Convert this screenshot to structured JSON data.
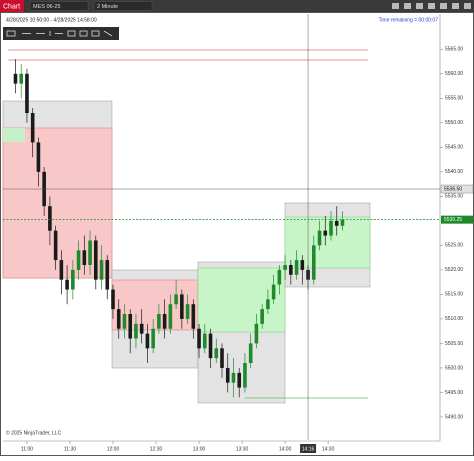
{
  "chart_data": {
    "type": "candlestick",
    "tab": "Chart",
    "instrument": "MES 06-25",
    "interval": "2 Minute",
    "date_range": "4/28/2025 10:50:00 - 4/28/2025 14:58:00",
    "time_remaining": "Time remaining = 00:00:07",
    "copyright": "© 2025 NinjaTrader, LLC",
    "x": [
      "10:52",
      "10:56",
      "11:00",
      "11:04",
      "11:08",
      "11:12",
      "11:16",
      "11:20",
      "11:24",
      "11:28",
      "11:32",
      "11:36",
      "11:40",
      "11:44",
      "11:48",
      "11:52",
      "11:56",
      "12:00",
      "12:04",
      "12:08",
      "12:12",
      "12:16",
      "12:20",
      "12:24",
      "12:28",
      "12:32",
      "12:36",
      "12:40",
      "12:44",
      "12:48",
      "12:52",
      "12:56",
      "13:00",
      "13:04",
      "13:08",
      "13:12",
      "13:16",
      "13:20",
      "13:24",
      "13:28",
      "13:32",
      "13:36",
      "13:40",
      "13:44",
      "13:48",
      "13:52",
      "13:56",
      "14:00",
      "14:04",
      "14:08",
      "14:12",
      "14:16",
      "14:20",
      "14:24",
      "14:28",
      "14:32",
      "14:36",
      "14:40"
    ],
    "open": [
      5560,
      5558,
      5560,
      5552,
      5546,
      5540,
      5533,
      5528,
      5522,
      5518,
      5516,
      5520,
      5524,
      5521,
      5526,
      5518,
      5522,
      5516,
      5512,
      5508,
      5511,
      5506,
      5509,
      5507,
      5504,
      5508,
      5511,
      5508,
      5513,
      5515,
      5510,
      5513,
      5508,
      5504,
      5507,
      5502,
      5504,
      5500,
      5497,
      5499,
      5496,
      5501,
      5505,
      5509,
      5512,
      5514,
      5517,
      5520,
      5521,
      5519,
      5522,
      5520,
      5518,
      5525,
      5528,
      5527,
      5530,
      5529
    ],
    "high": [
      5563,
      5562,
      5561,
      5553,
      5547,
      5541,
      5535,
      5529,
      5524,
      5521,
      5522,
      5526,
      5527,
      5528,
      5527,
      5525,
      5523,
      5517,
      5514,
      5513,
      5512,
      5511,
      5512,
      5509,
      5510,
      5513,
      5514,
      5515,
      5518,
      5516,
      5515,
      5514,
      5509,
      5509,
      5508,
      5506,
      5505,
      5503,
      5502,
      5500,
      5503,
      5507,
      5511,
      5513,
      5516,
      5519,
      5521,
      5523,
      5522,
      5524,
      5523,
      5521,
      5527,
      5530,
      5531,
      5532,
      5533,
      5532
    ],
    "low": [
      5556,
      5555,
      5550,
      5543,
      5537,
      5531,
      5525,
      5520,
      5515,
      5513,
      5514,
      5518,
      5519,
      5519,
      5516,
      5516,
      5514,
      5510,
      5506,
      5506,
      5503,
      5504,
      5505,
      5501,
      5503,
      5507,
      5506,
      5507,
      5512,
      5508,
      5509,
      5506,
      5502,
      5503,
      5500,
      5501,
      5498,
      5495,
      5494,
      5494,
      5495,
      5500,
      5504,
      5508,
      5511,
      5513,
      5515,
      5518,
      5517,
      5518,
      5517,
      5516,
      5517,
      5524,
      5525,
      5526,
      5527,
      5528
    ],
    "close": [
      5558,
      5560,
      5552,
      5546,
      5540,
      5533,
      5528,
      5522,
      5518,
      5516,
      5520,
      5524,
      5521,
      5526,
      5518,
      5522,
      5516,
      5512,
      5508,
      5511,
      5506,
      5509,
      5507,
      5504,
      5508,
      5511,
      5508,
      5513,
      5515,
      5510,
      5513,
      5508,
      5504,
      5507,
      5502,
      5504,
      5500,
      5497,
      5499,
      5496,
      5501,
      5505,
      5509,
      5512,
      5514,
      5517,
      5520,
      5521,
      5519,
      5522,
      5520,
      5518,
      5525,
      5528,
      5527,
      5530,
      5529,
      5530.25
    ],
    "up_color": "#1e8a2c",
    "down_color": "#1a1a1a",
    "xlim": [
      "10:44",
      "15:48"
    ],
    "xticks": [
      "11:00",
      "11:30",
      "12:00",
      "12:30",
      "13:00",
      "13:30",
      "14:00",
      "14:30"
    ],
    "ylim": [
      5485.3,
      5572.2
    ],
    "yticks": [
      {
        "value": 5490,
        "label": "5490.00"
      },
      {
        "value": 5495,
        "label": "5495.00"
      },
      {
        "value": 5500,
        "label": "5500.00"
      },
      {
        "value": 5505,
        "label": "5505.00"
      },
      {
        "value": 5510,
        "label": "5510.00"
      },
      {
        "value": 5515,
        "label": "5515.00"
      },
      {
        "value": 5520,
        "label": "5520.00"
      },
      {
        "value": 5525,
        "label": "5525.00"
      },
      {
        "value": 5535,
        "label": "5535.00"
      },
      {
        "value": 5540,
        "label": "5540.00"
      },
      {
        "value": 5545,
        "label": "5545.00"
      },
      {
        "value": 5550,
        "label": "5550.00"
      },
      {
        "value": 5555,
        "label": "5555.00"
      },
      {
        "value": 5560,
        "label": "5560.00"
      },
      {
        "value": 5565,
        "label": "5565.00"
      }
    ],
    "last_price": 5530.25,
    "crosshair": {
      "x": "14:16",
      "y": {
        "value": 5536.5,
        "label": "5536.50"
      }
    }
  }
}
